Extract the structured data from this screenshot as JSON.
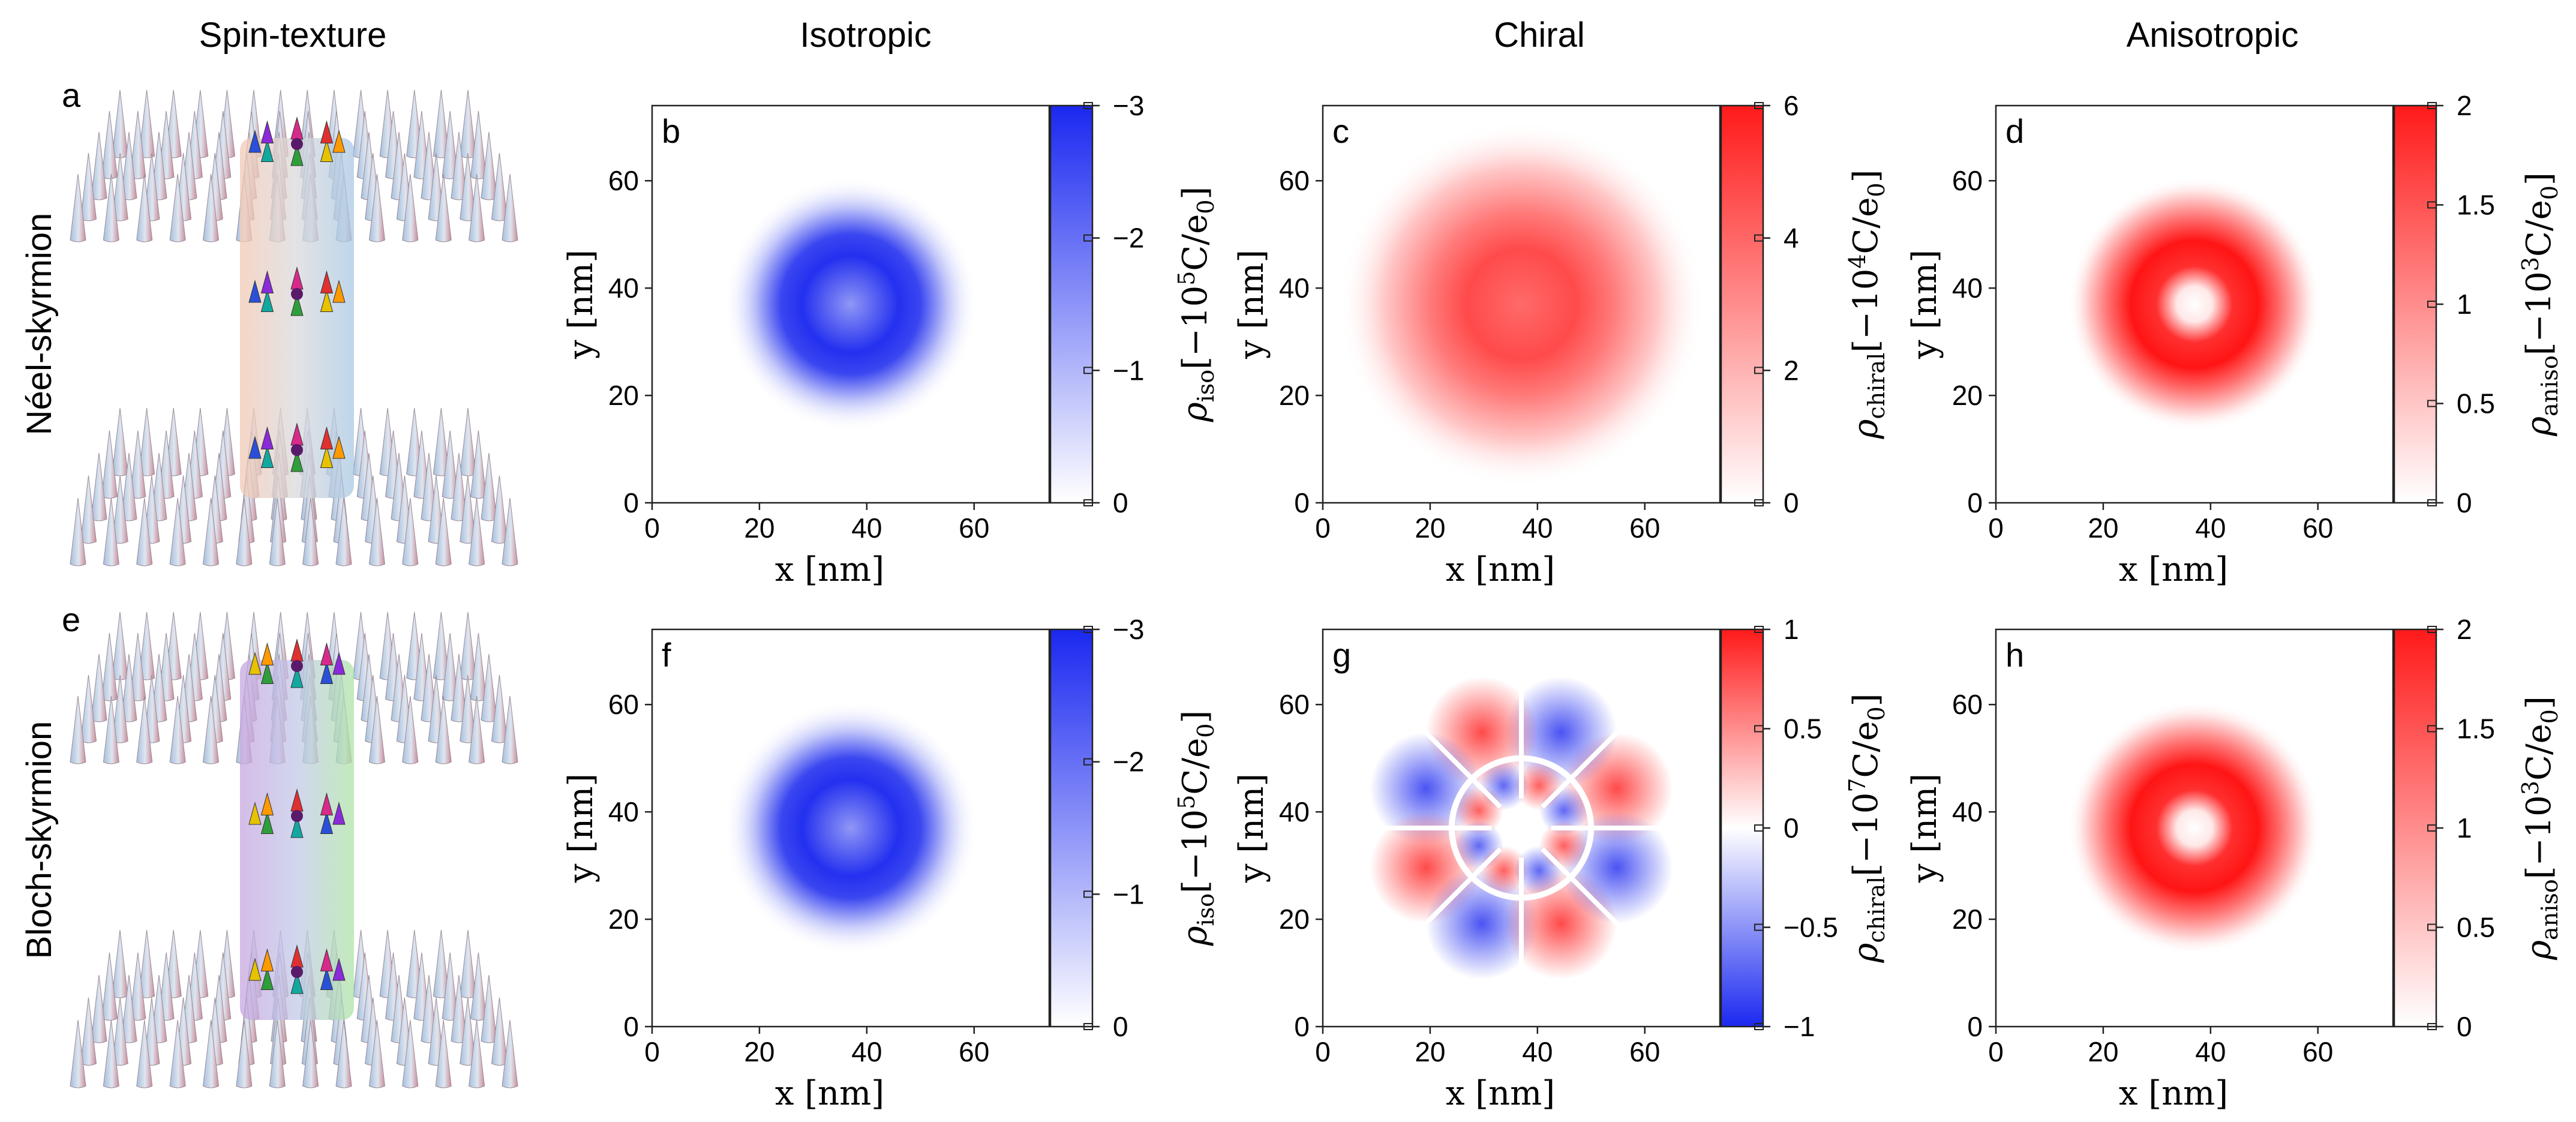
{
  "columns": [
    "Spin-texture",
    "Isotropic",
    "Chiral",
    "Anisotropic"
  ],
  "rows": [
    "Néel-skyrmion",
    "Bloch-skyrmion"
  ],
  "panel_letters": [
    "a",
    "b",
    "c",
    "d",
    "e",
    "f",
    "g",
    "h"
  ],
  "axes": {
    "xlabel": "x [nm]",
    "ylabel": "y [nm]",
    "xticks": [
      "0",
      "20",
      "40",
      "60"
    ],
    "yticks": [
      "0",
      "20",
      "40",
      "60"
    ]
  },
  "colorbars": {
    "iso": {
      "label_sym": "ρ",
      "label_sub": "iso",
      "label_pre": "[−10",
      "label_exp": "5",
      "label_post": "C/e",
      "label_sub2": "0",
      "label_end": "]",
      "ticks": [
        "−3",
        "−2",
        "−1",
        "0"
      ]
    },
    "chiral_top": {
      "label_sym": "ρ",
      "label_sub": "chiral",
      "label_pre": "[−10",
      "label_exp": "4",
      "label_post": "C/e",
      "label_sub2": "0",
      "label_end": "]",
      "ticks": [
        "6",
        "4",
        "2",
        "0"
      ]
    },
    "chiral_bottom": {
      "label_sym": "ρ",
      "label_sub": "chiral",
      "label_pre": "[−10",
      "label_exp": "7",
      "label_post": "C/e",
      "label_sub2": "0",
      "label_end": "]",
      "ticks": [
        "1",
        "0.5",
        "0",
        "−0.5",
        "−1"
      ]
    },
    "aniso": {
      "label_sym": "ρ",
      "label_sub": "aniso",
      "label_pre": "[−10",
      "label_exp": "3",
      "label_post": "C/e",
      "label_sub2": "0",
      "label_end": "]",
      "ticks": [
        "2",
        "1.5",
        "1",
        "0.5",
        "0"
      ]
    }
  },
  "colors": {
    "blue": "#1a28f0",
    "red": "#ff1a1a",
    "white": "#ffffff"
  },
  "chart_data": [
    {
      "panel": "b",
      "type": "heatmap",
      "xlabel": "x [nm]",
      "ylabel": "y [nm]",
      "xlim": [
        0,
        74
      ],
      "ylim": [
        0,
        74
      ],
      "center": [
        37,
        37
      ],
      "ring_radius": 11,
      "colorbar_range": [
        -3,
        0
      ],
      "colorbar_unit_exp": 5,
      "pattern": "filled disk, peak around r≈11 nm",
      "colormap": "white-blue"
    },
    {
      "panel": "c",
      "type": "heatmap",
      "xlabel": "x [nm]",
      "ylabel": "y [nm]",
      "xlim": [
        0,
        74
      ],
      "ylim": [
        0,
        74
      ],
      "center": [
        37,
        37
      ],
      "ring_radius": 11,
      "colorbar_range": [
        0,
        6
      ],
      "colorbar_unit_exp": 4,
      "pattern": "broad disk",
      "colormap": "white-red"
    },
    {
      "panel": "d",
      "type": "heatmap",
      "xlabel": "x [nm]",
      "ylabel": "y [nm]",
      "xlim": [
        0,
        74
      ],
      "ylim": [
        0,
        74
      ],
      "center": [
        37,
        37
      ],
      "ring_radius": 11,
      "colorbar_range": [
        0,
        2
      ],
      "colorbar_unit_exp": 3,
      "pattern": "ring",
      "colormap": "white-red"
    },
    {
      "panel": "f",
      "type": "heatmap",
      "xlabel": "x [nm]",
      "ylabel": "y [nm]",
      "xlim": [
        0,
        74
      ],
      "ylim": [
        0,
        74
      ],
      "center": [
        37,
        37
      ],
      "ring_radius": 11,
      "colorbar_range": [
        -3,
        0
      ],
      "colorbar_unit_exp": 5,
      "pattern": "filled disk, peak around r≈11 nm",
      "colormap": "white-blue"
    },
    {
      "panel": "g",
      "type": "heatmap",
      "xlabel": "x [nm]",
      "ylabel": "y [nm]",
      "xlim": [
        0,
        74
      ],
      "ylim": [
        0,
        74
      ],
      "center": [
        37,
        37
      ],
      "ring_radius": 11,
      "colorbar_range": [
        -1,
        1
      ],
      "colorbar_unit_exp": 7,
      "pattern": "eight alternating lobes (angular order 4) with sign change across ring r≈11 nm",
      "colormap": "blue-white-red"
    },
    {
      "panel": "h",
      "type": "heatmap",
      "xlabel": "x [nm]",
      "ylabel": "y [nm]",
      "xlim": [
        0,
        74
      ],
      "ylim": [
        0,
        74
      ],
      "center": [
        37,
        37
      ],
      "ring_radius": 11,
      "colorbar_range": [
        0,
        2
      ],
      "colorbar_unit_exp": 3,
      "pattern": "ring",
      "colormap": "white-red"
    }
  ]
}
